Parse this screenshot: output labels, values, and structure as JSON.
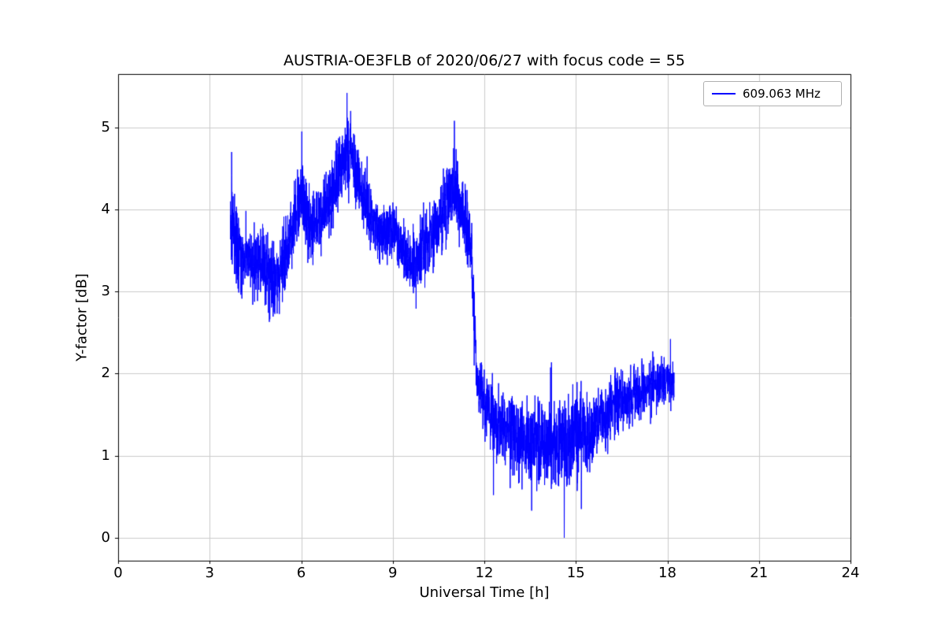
{
  "chart_data": {
    "type": "line",
    "title": "AUSTRIA-OE3FLB of 2020/06/27 with focus code = 55",
    "xlabel": "Universal Time [h]",
    "ylabel": "Y-factor [dB]",
    "xlim": [
      0,
      24
    ],
    "ylim": [
      -0.28,
      5.65
    ],
    "xticks": [
      0,
      3,
      6,
      9,
      12,
      15,
      18,
      21,
      24
    ],
    "yticks": [
      0,
      1,
      2,
      3,
      4,
      5
    ],
    "grid": true,
    "grid_color": "#cccccc",
    "axes_color": "#000000",
    "legend": {
      "label": "609.063 MHz",
      "position": "upper right"
    },
    "series": [
      {
        "name": "609.063 MHz",
        "color": "#0000ff",
        "x_range": [
          3.68,
          18.22
        ],
        "sample_step_h": 0.004,
        "noise_seed": 42,
        "envelope": [
          [
            3.68,
            3.9,
            0.55
          ],
          [
            4.0,
            3.45,
            0.45
          ],
          [
            4.4,
            3.35,
            0.45
          ],
          [
            4.8,
            3.3,
            0.5
          ],
          [
            5.2,
            3.1,
            0.5
          ],
          [
            5.6,
            3.6,
            0.45
          ],
          [
            6.0,
            4.2,
            0.5
          ],
          [
            6.3,
            3.75,
            0.45
          ],
          [
            6.6,
            3.9,
            0.45
          ],
          [
            7.0,
            4.15,
            0.5
          ],
          [
            7.4,
            4.65,
            0.5
          ],
          [
            7.6,
            4.7,
            0.45
          ],
          [
            7.9,
            4.3,
            0.4
          ],
          [
            8.2,
            4.0,
            0.4
          ],
          [
            8.5,
            3.7,
            0.35
          ],
          [
            8.8,
            3.7,
            0.35
          ],
          [
            9.0,
            3.8,
            0.35
          ],
          [
            9.3,
            3.55,
            0.4
          ],
          [
            9.7,
            3.3,
            0.45
          ],
          [
            10.0,
            3.5,
            0.45
          ],
          [
            10.4,
            3.8,
            0.45
          ],
          [
            10.8,
            4.1,
            0.5
          ],
          [
            11.0,
            4.3,
            0.5
          ],
          [
            11.3,
            3.95,
            0.5
          ],
          [
            11.55,
            3.6,
            0.5
          ],
          [
            11.65,
            2.7,
            0.5
          ],
          [
            11.8,
            1.85,
            0.4
          ],
          [
            12.1,
            1.6,
            0.45
          ],
          [
            12.5,
            1.35,
            0.5
          ],
          [
            13.0,
            1.25,
            0.55
          ],
          [
            13.5,
            1.15,
            0.55
          ],
          [
            14.0,
            1.15,
            0.6
          ],
          [
            14.5,
            1.1,
            0.6
          ],
          [
            15.0,
            1.25,
            0.55
          ],
          [
            15.5,
            1.3,
            0.5
          ],
          [
            16.0,
            1.5,
            0.45
          ],
          [
            16.5,
            1.65,
            0.4
          ],
          [
            17.0,
            1.75,
            0.35
          ],
          [
            17.5,
            1.85,
            0.35
          ],
          [
            18.0,
            1.9,
            0.3
          ],
          [
            18.22,
            1.85,
            0.3
          ]
        ],
        "spikes": [
          [
            3.72,
            4.7
          ],
          [
            6.02,
            4.95
          ],
          [
            7.5,
            5.42
          ],
          [
            7.62,
            5.2
          ],
          [
            11.02,
            5.08
          ],
          [
            12.3,
            0.52
          ],
          [
            13.55,
            0.33
          ],
          [
            14.62,
            0.0
          ],
          [
            15.18,
            0.35
          ],
          [
            18.1,
            2.42
          ]
        ],
        "value_clamp": [
          0.0,
          5.42
        ]
      }
    ]
  }
}
